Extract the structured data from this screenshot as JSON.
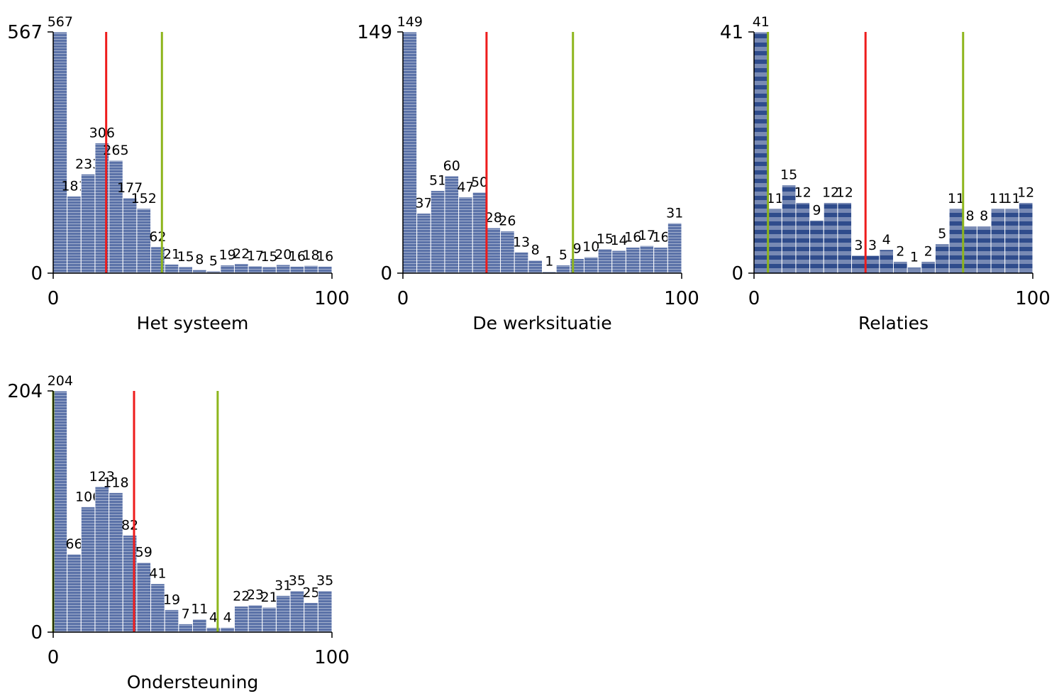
{
  "chart_data": [
    {
      "type": "histogram",
      "xlabel": "Het systeem",
      "color": "#5b72a8",
      "bins": [
        0,
        5,
        10,
        15,
        20,
        25,
        30,
        35,
        40,
        45,
        50,
        55,
        60,
        65,
        70,
        75,
        80,
        85,
        90,
        95,
        100
      ],
      "values": [
        567,
        181,
        233,
        306,
        265,
        177,
        152,
        62,
        21,
        15,
        8,
        5,
        19,
        22,
        17,
        15,
        20,
        16,
        18,
        16
      ],
      "xlim": [
        0,
        100
      ],
      "xticks": [
        0,
        100
      ],
      "ylim": [
        0,
        567
      ],
      "yticks": [
        0,
        567
      ],
      "lines": [
        {
          "value": 19,
          "color": "#ee1c1c"
        },
        {
          "value": 39,
          "color": "#8db51c"
        }
      ]
    },
    {
      "type": "histogram",
      "xlabel": "De werksituatie",
      "color": "#5b72a8",
      "bins": [
        0,
        5,
        10,
        15,
        20,
        25,
        30,
        35,
        40,
        45,
        50,
        55,
        60,
        65,
        70,
        75,
        80,
        85,
        90,
        95,
        100
      ],
      "values": [
        149,
        37,
        51,
        60,
        47,
        50,
        28,
        26,
        13,
        8,
        1,
        5,
        9,
        10,
        15,
        14,
        16,
        17,
        16,
        31
      ],
      "xlim": [
        0,
        100
      ],
      "xticks": [
        0,
        100
      ],
      "ylim": [
        0,
        149
      ],
      "yticks": [
        0,
        149
      ],
      "lines": [
        {
          "value": 30,
          "color": "#ee1c1c"
        },
        {
          "value": 61,
          "color": "#8db51c"
        }
      ]
    },
    {
      "type": "histogram",
      "xlabel": "Relaties",
      "color": "#2f4c8c",
      "bins": [
        0,
        5,
        10,
        15,
        20,
        25,
        30,
        35,
        40,
        45,
        50,
        55,
        60,
        65,
        70,
        75,
        80,
        85,
        90,
        95,
        100
      ],
      "values": [
        41,
        11,
        15,
        12,
        9,
        12,
        12,
        3,
        3,
        4,
        2,
        1,
        2,
        5,
        11,
        8,
        8,
        11,
        11,
        12
      ],
      "xlim": [
        0,
        100
      ],
      "xticks": [
        0,
        100
      ],
      "ylim": [
        0,
        41
      ],
      "yticks": [
        0,
        41
      ],
      "lines": [
        {
          "value": 5,
          "color": "#8db51c"
        },
        {
          "value": 40,
          "color": "#ee1c1c"
        },
        {
          "value": 75,
          "color": "#8db51c"
        }
      ]
    },
    {
      "type": "histogram",
      "xlabel": "Ondersteuning",
      "color": "#5b72a8",
      "bins": [
        0,
        5,
        10,
        15,
        20,
        25,
        30,
        35,
        40,
        45,
        50,
        55,
        60,
        65,
        70,
        75,
        80,
        85,
        90,
        95,
        100
      ],
      "values": [
        204,
        66,
        106,
        123,
        118,
        82,
        59,
        41,
        19,
        7,
        11,
        4,
        4,
        22,
        23,
        21,
        31,
        35,
        25,
        35
      ],
      "xlim": [
        0,
        100
      ],
      "xticks": [
        0,
        100
      ],
      "ylim": [
        0,
        204
      ],
      "yticks": [
        0,
        204
      ],
      "lines": [
        {
          "value": 0,
          "color": "#8db51c"
        },
        {
          "value": 29,
          "color": "#ee1c1c"
        },
        {
          "value": 59,
          "color": "#8db51c"
        }
      ]
    }
  ]
}
